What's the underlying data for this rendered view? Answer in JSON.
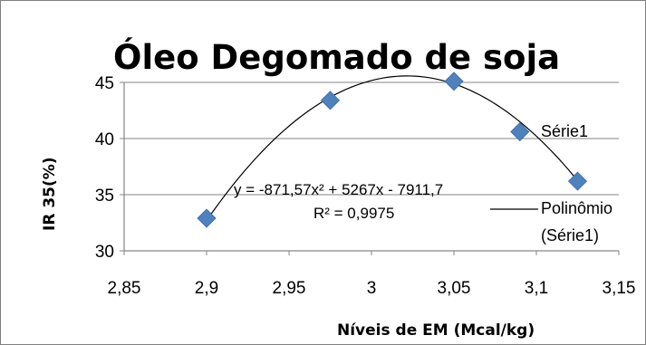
{
  "chart_data": {
    "type": "scatter",
    "title": "Óleo Degomado de soja",
    "xlabel": "Níveis de EM (Mcal/kg)",
    "ylabel": "IR  35(%)",
    "xlim": [
      2.85,
      3.15
    ],
    "ylim": [
      30,
      45
    ],
    "xticks": [
      2.85,
      2.9,
      2.95,
      3.0,
      3.05,
      3.1,
      3.15
    ],
    "xtick_labels": [
      "2,85",
      "2,9",
      "2,95",
      "3",
      "3,05",
      "3,1",
      "3,15"
    ],
    "yticks": [
      30,
      35,
      40,
      45
    ],
    "ytick_labels": [
      "30",
      "35",
      "40",
      "45"
    ],
    "grid": "horizontal",
    "series": [
      {
        "name": "Série1",
        "marker": "diamond",
        "color": "#4F81BD",
        "points": [
          {
            "x": 2.9,
            "y": 32.9
          },
          {
            "x": 2.975,
            "y": 43.4
          },
          {
            "x": 3.05,
            "y": 45.1
          },
          {
            "x": 3.09,
            "y": 40.6
          },
          {
            "x": 3.125,
            "y": 36.2
          }
        ]
      }
    ],
    "trendline": {
      "name": "Polinômio (Série1)",
      "type": "polynomial",
      "order": 2,
      "coefficients": [
        -871.57,
        5267,
        -7911.7
      ],
      "x_range": [
        2.9,
        3.125
      ],
      "color": "#000000"
    },
    "annotations": {
      "equation": "y = -871,57x² + 5267x - 7911,7",
      "r_squared": "R² = 0,9975"
    },
    "legend": {
      "position": "right",
      "entries": [
        "Série1",
        "Polinômio",
        "(Série1)"
      ]
    }
  }
}
